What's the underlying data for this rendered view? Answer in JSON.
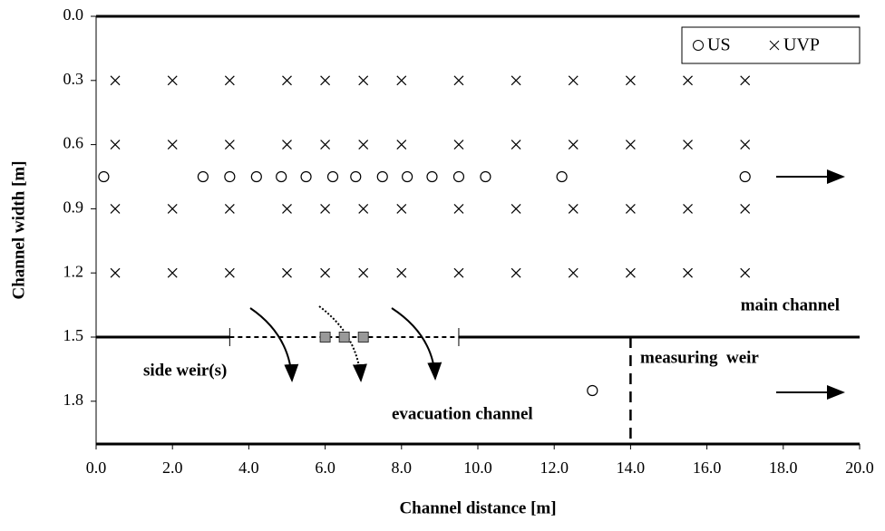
{
  "chart_data": {
    "type": "scatter",
    "x_label": "Channel distance [m]",
    "y_label": "Channel width [m]",
    "xlim": [
      0,
      20
    ],
    "ylim": [
      0,
      2.0
    ],
    "y_reversed": true,
    "xticks": [
      {
        "value": 0,
        "label": "0.0"
      },
      {
        "value": 2,
        "label": "2.0"
      },
      {
        "value": 4,
        "label": "4.0"
      },
      {
        "value": 6,
        "label": "6.0"
      },
      {
        "value": 8,
        "label": "8.0"
      },
      {
        "value": 10,
        "label": "10.0"
      },
      {
        "value": 12,
        "label": "12.0"
      },
      {
        "value": 14,
        "label": "14.0"
      },
      {
        "value": 16,
        "label": "16.0"
      },
      {
        "value": 18,
        "label": "18.0"
      },
      {
        "value": 20,
        "label": "20.0"
      }
    ],
    "yticks": [
      {
        "value": 0,
        "label": "0.0"
      },
      0.3,
      0.6,
      0.9,
      1.2,
      1.5,
      1.8
    ],
    "legend": "top-right",
    "series": [
      {
        "name": "US",
        "marker": "circle",
        "color": "#000000",
        "x": [
          0.2,
          2.8,
          3.5,
          4.2,
          4.85,
          5.5,
          6.2,
          6.8,
          7.5,
          8.15,
          8.8,
          9.5,
          10.2,
          12.2,
          17.0,
          13.0
        ],
        "y": [
          0.75,
          0.75,
          0.75,
          0.75,
          0.75,
          0.75,
          0.75,
          0.75,
          0.75,
          0.75,
          0.75,
          0.75,
          0.75,
          0.75,
          0.75,
          1.75
        ]
      },
      {
        "name": "UVP",
        "marker": "cross",
        "color": "#000000",
        "x": [
          0.5,
          2,
          3.5,
          5,
          6,
          7,
          8,
          9.5,
          11,
          12.5,
          14,
          15.5,
          17,
          0.5,
          2,
          3.5,
          5,
          6,
          7,
          8,
          9.5,
          11,
          12.5,
          14,
          15.5,
          17,
          0.5,
          2,
          3.5,
          5,
          6,
          7,
          8,
          9.5,
          11,
          12.5,
          14,
          15.5,
          17,
          0.5,
          2,
          3.5,
          5,
          6,
          7,
          8,
          9.5,
          11,
          12.5,
          14,
          15.5,
          17
        ],
        "y": [
          0.3,
          0.3,
          0.3,
          0.3,
          0.3,
          0.3,
          0.3,
          0.3,
          0.3,
          0.3,
          0.3,
          0.3,
          0.3,
          0.6,
          0.6,
          0.6,
          0.6,
          0.6,
          0.6,
          0.6,
          0.6,
          0.6,
          0.6,
          0.6,
          0.6,
          0.6,
          0.9,
          0.9,
          0.9,
          0.9,
          0.9,
          0.9,
          0.9,
          0.9,
          0.9,
          0.9,
          0.9,
          0.9,
          0.9,
          1.2,
          1.2,
          1.2,
          1.2,
          1.2,
          1.2,
          1.2,
          1.2,
          1.2,
          1.2,
          1.2,
          1.2,
          1.2
        ]
      }
    ],
    "channel_divider_y": 1.5,
    "side_weir_x": [
      3.5,
      9.5
    ],
    "gates_x": [
      6,
      6.5,
      7
    ],
    "measuring_weir_x": 14,
    "annotations": [
      "main channel",
      "side weir(s)",
      "measuring  weir",
      "evacuation channel"
    ]
  }
}
